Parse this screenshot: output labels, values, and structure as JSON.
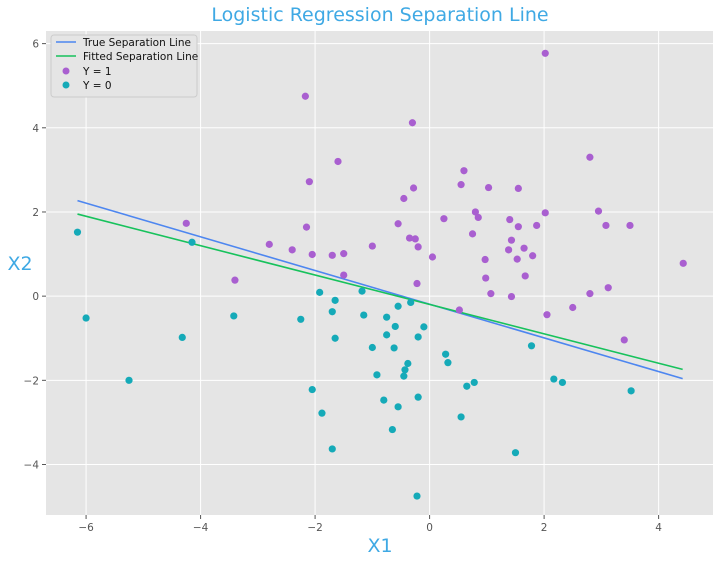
{
  "chart_data": {
    "type": "scatter",
    "title": "Logistic Regression Separation Line",
    "xlabel": "X1",
    "ylabel": "X2",
    "xlim": [
      -6.7,
      4.95
    ],
    "ylim": [
      -5.2,
      6.3
    ],
    "xticks": [
      -6,
      -4,
      -2,
      0,
      2,
      4
    ],
    "yticks": [
      -4,
      -2,
      0,
      2,
      4,
      6
    ],
    "grid": true,
    "legend_position": "top-left",
    "lines": [
      {
        "name": "True Separation Line",
        "color": "#4d86f0",
        "x": [
          -6.15,
          4.42
        ],
        "y": [
          2.27,
          -1.96
        ]
      },
      {
        "name": "Fitted Separation Line",
        "color": "#17c25c",
        "x": [
          -6.15,
          4.42
        ],
        "y": [
          1.95,
          -1.74
        ]
      }
    ],
    "series": [
      {
        "name": "Y = 1",
        "color": "#a95fd0",
        "points": [
          [
            2.02,
            5.77
          ],
          [
            -2.17,
            4.75
          ],
          [
            -0.3,
            4.12
          ],
          [
            -1.6,
            3.2
          ],
          [
            2.8,
            3.3
          ],
          [
            0.6,
            2.98
          ],
          [
            -2.1,
            2.72
          ],
          [
            0.55,
            2.65
          ],
          [
            1.03,
            2.58
          ],
          [
            1.55,
            2.56
          ],
          [
            -0.28,
            2.57
          ],
          [
            -0.45,
            2.32
          ],
          [
            0.8,
            2.0
          ],
          [
            0.85,
            1.87
          ],
          [
            2.02,
            1.98
          ],
          [
            2.95,
            2.02
          ],
          [
            0.25,
            1.84
          ],
          [
            1.4,
            1.82
          ],
          [
            -4.25,
            1.73
          ],
          [
            -0.55,
            1.72
          ],
          [
            1.55,
            1.65
          ],
          [
            1.87,
            1.68
          ],
          [
            3.08,
            1.68
          ],
          [
            3.5,
            1.68
          ],
          [
            -2.15,
            1.64
          ],
          [
            0.75,
            1.48
          ],
          [
            -0.35,
            1.38
          ],
          [
            -0.25,
            1.36
          ],
          [
            1.43,
            1.33
          ],
          [
            -2.8,
            1.23
          ],
          [
            -1.0,
            1.19
          ],
          [
            -0.2,
            1.17
          ],
          [
            1.65,
            1.14
          ],
          [
            1.38,
            1.1
          ],
          [
            -2.4,
            1.1
          ],
          [
            -1.5,
            1.01
          ],
          [
            -2.05,
            0.99
          ],
          [
            -1.7,
            0.97
          ],
          [
            1.8,
            0.96
          ],
          [
            0.05,
            0.93
          ],
          [
            0.97,
            0.87
          ],
          [
            1.53,
            0.88
          ],
          [
            4.43,
            0.78
          ],
          [
            -1.5,
            0.5
          ],
          [
            1.67,
            0.48
          ],
          [
            0.98,
            0.43
          ],
          [
            -3.4,
            0.38
          ],
          [
            -0.22,
            0.3
          ],
          [
            3.12,
            0.2
          ],
          [
            2.8,
            0.06
          ],
          [
            1.07,
            0.06
          ],
          [
            1.43,
            -0.01
          ],
          [
            2.5,
            -0.27
          ],
          [
            0.52,
            -0.33
          ],
          [
            2.05,
            -0.44
          ],
          [
            3.4,
            -1.04
          ]
        ]
      },
      {
        "name": "Y = 0",
        "color": "#15aab8",
        "points": [
          [
            -6.15,
            1.52
          ],
          [
            -4.15,
            1.28
          ],
          [
            -1.92,
            0.09
          ],
          [
            -1.18,
            0.12
          ],
          [
            -1.65,
            -0.1
          ],
          [
            -0.33,
            -0.15
          ],
          [
            -0.55,
            -0.24
          ],
          [
            -6.0,
            -0.52
          ],
          [
            -3.42,
            -0.47
          ],
          [
            -1.7,
            -0.37
          ],
          [
            -1.15,
            -0.45
          ],
          [
            -0.75,
            -0.5
          ],
          [
            -2.25,
            -0.55
          ],
          [
            -0.1,
            -0.73
          ],
          [
            -0.6,
            -0.72
          ],
          [
            -4.32,
            -0.98
          ],
          [
            -1.65,
            -1.0
          ],
          [
            -0.75,
            -0.92
          ],
          [
            -0.2,
            -0.97
          ],
          [
            -1.0,
            -1.22
          ],
          [
            -0.62,
            -1.23
          ],
          [
            0.28,
            -1.38
          ],
          [
            1.78,
            -1.18
          ],
          [
            -0.38,
            -1.6
          ],
          [
            0.32,
            -1.58
          ],
          [
            -0.43,
            -1.75
          ],
          [
            -0.92,
            -1.87
          ],
          [
            -0.45,
            -1.9
          ],
          [
            2.17,
            -1.97
          ],
          [
            -5.25,
            -2.0
          ],
          [
            0.78,
            -2.05
          ],
          [
            2.32,
            -2.05
          ],
          [
            -2.05,
            -2.22
          ],
          [
            0.65,
            -2.14
          ],
          [
            3.52,
            -2.25
          ],
          [
            -0.2,
            -2.4
          ],
          [
            -0.8,
            -2.47
          ],
          [
            -0.55,
            -2.63
          ],
          [
            -1.88,
            -2.78
          ],
          [
            0.55,
            -2.87
          ],
          [
            -0.65,
            -3.17
          ],
          [
            -1.7,
            -3.63
          ],
          [
            1.5,
            -3.72
          ],
          [
            -0.22,
            -4.75
          ]
        ]
      }
    ]
  }
}
